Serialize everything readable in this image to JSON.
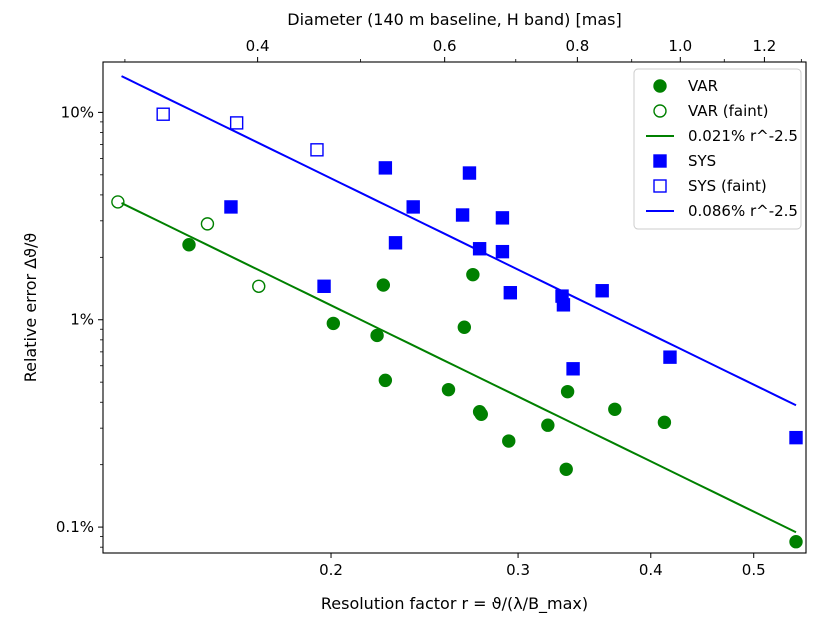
{
  "chart_data": {
    "type": "scatter",
    "xscale": "log",
    "yscale": "log",
    "xlabel": "Resolution factor r = ϑ/(λ/B_max)",
    "ylabel": "Relative error Δϑ/ϑ",
    "top_xlabel": "Diameter (140 m baseline, H band) [mas]",
    "xlim": [
      0.122,
      0.56
    ],
    "ylim": [
      0.00075,
      0.175
    ],
    "x_ticks": [
      {
        "value": 0.2,
        "label": "0.2"
      },
      {
        "value": 0.3,
        "label": "0.3"
      },
      {
        "value": 0.4,
        "label": "0.4"
      },
      {
        "value": 0.5,
        "label": "0.5"
      }
    ],
    "top_x_ticks": [
      {
        "value": 0.4,
        "label": "0.4"
      },
      {
        "value": 0.6,
        "label": "0.6"
      },
      {
        "value": 0.8,
        "label": "0.8"
      },
      {
        "value": 1.0,
        "label": "1.0"
      },
      {
        "value": 1.2,
        "label": "1.2"
      }
    ],
    "y_ticks": [
      {
        "value": 0.001,
        "label": "0.1%"
      },
      {
        "value": 0.01,
        "label": "1%"
      },
      {
        "value": 0.1,
        "label": "10%"
      }
    ],
    "grid": false,
    "legend_position": "top-right",
    "series": [
      {
        "name": "VAR",
        "kind": "points",
        "color": "#008000",
        "marker": "circle",
        "filled": true,
        "points": [
          [
            0.147,
            0.023
          ],
          [
            0.201,
            0.0096
          ],
          [
            0.221,
            0.0084
          ],
          [
            0.224,
            0.0147
          ],
          [
            0.225,
            0.0051
          ],
          [
            0.258,
            0.0046
          ],
          [
            0.267,
            0.0092
          ],
          [
            0.272,
            0.0165
          ],
          [
            0.276,
            0.0036
          ],
          [
            0.277,
            0.0035
          ],
          [
            0.294,
            0.0026
          ],
          [
            0.32,
            0.0031
          ],
          [
            0.333,
            0.0019
          ],
          [
            0.334,
            0.0045
          ],
          [
            0.37,
            0.0037
          ],
          [
            0.412,
            0.0032
          ],
          [
            0.548,
            0.00085
          ]
        ]
      },
      {
        "name": "VAR (faint)",
        "kind": "points",
        "color": "#008000",
        "marker": "circle",
        "filled": false,
        "points": [
          [
            0.126,
            0.037
          ],
          [
            0.153,
            0.029
          ],
          [
            0.171,
            0.0145
          ]
        ]
      },
      {
        "name": "0.021% r^-2.5",
        "kind": "line",
        "color": "#008000",
        "coef": 0.00021,
        "exponent": -2.5,
        "x_range": [
          0.127,
          0.548
        ]
      },
      {
        "name": "SYS",
        "kind": "points",
        "color": "#0000ff",
        "marker": "square",
        "filled": true,
        "points": [
          [
            0.161,
            0.035
          ],
          [
            0.197,
            0.0145
          ],
          [
            0.225,
            0.054
          ],
          [
            0.23,
            0.0235
          ],
          [
            0.239,
            0.035
          ],
          [
            0.266,
            0.032
          ],
          [
            0.27,
            0.051
          ],
          [
            0.276,
            0.022
          ],
          [
            0.29,
            0.031
          ],
          [
            0.29,
            0.0213
          ],
          [
            0.295,
            0.0135
          ],
          [
            0.33,
            0.013
          ],
          [
            0.331,
            0.0118
          ],
          [
            0.338,
            0.0058
          ],
          [
            0.36,
            0.0138
          ],
          [
            0.417,
            0.0066
          ],
          [
            0.548,
            0.0027
          ]
        ]
      },
      {
        "name": "SYS (faint)",
        "kind": "points",
        "color": "#0000ff",
        "marker": "square",
        "filled": false,
        "points": [
          [
            0.139,
            0.098
          ],
          [
            0.163,
            0.089
          ],
          [
            0.194,
            0.066
          ]
        ]
      },
      {
        "name": "0.086% r^-2.5",
        "kind": "line",
        "color": "#0000ff",
        "coef": 0.00086,
        "exponent": -2.5,
        "x_range": [
          0.127,
          0.548
        ]
      }
    ],
    "legend": [
      {
        "label": "VAR",
        "series": 0
      },
      {
        "label": "VAR (faint)",
        "series": 1
      },
      {
        "label": "0.021% r^-2.5",
        "series": 2
      },
      {
        "label": "SYS",
        "series": 3
      },
      {
        "label": "SYS (faint)",
        "series": 4
      },
      {
        "label": "0.086% r^-2.5",
        "series": 5
      }
    ]
  }
}
